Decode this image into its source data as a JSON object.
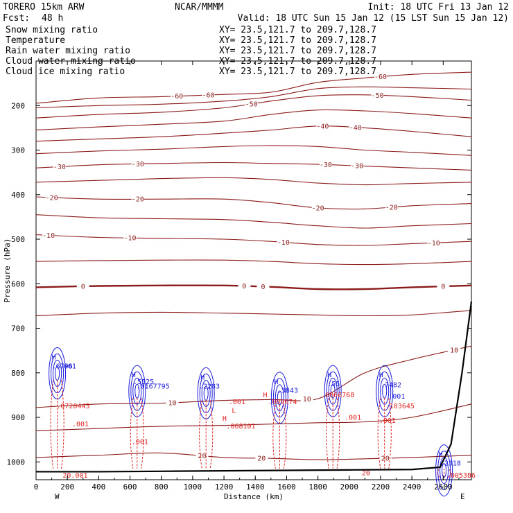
{
  "header": {
    "model": "TORERO  15km ARW",
    "center": "NCAR/MMMM",
    "init": "Init: 18 UTC Fri 13 Jan 12",
    "fcst_label": "Fcst:",
    "fcst_value": "48 h",
    "valid": "Valid: 18 UTC Sun 15 Jan 12 (15 LST Sun 15 Jan 12)"
  },
  "legend": [
    {
      "name": "Snow mixing ratio",
      "color": "#000000",
      "xy": "XY=  23.5,121.7 to 209.7,128.7"
    },
    {
      "name": "Temperature",
      "color": "#8b1a1a",
      "xy": "XY=  23.5,121.7 to 209.7,128.7"
    },
    {
      "name": "Rain water mixing ratio",
      "color": "#e02020",
      "xy": "XY=  23.5,121.7 to 209.7,128.7"
    },
    {
      "name": "Cloud water mixing ratio",
      "color": "#1a1adc",
      "xy": "XY=  23.5,121.7 to 209.7,128.7"
    },
    {
      "name": "Cloud ice mixing ratio",
      "color": "#000000",
      "xy": "XY=  23.5,121.7 to 209.7,128.7"
    }
  ],
  "colors": {
    "temperature": "#8b1a1a",
    "rain": "#e02020",
    "cloud_water": "#1a1adc",
    "terrain": "#000000"
  },
  "chart_data": {
    "type": "contour-cross-section",
    "xlabel": "Distance (km)",
    "ylabel": "Pressure (hPa)",
    "xlim": [
      0,
      2780
    ],
    "ylim": [
      1040,
      100
    ],
    "xticks": [
      0,
      200,
      400,
      600,
      800,
      1000,
      1200,
      1400,
      1600,
      1800,
      2000,
      2200,
      2400,
      2600
    ],
    "yticks": [
      200,
      300,
      400,
      500,
      600,
      700,
      800,
      900,
      1000
    ],
    "left_end_label": "W",
    "right_end_label": "E",
    "temperature_contours": [
      {
        "level": -60,
        "x": [
          0,
          400,
          800,
          1200,
          1500,
          1800,
          2100,
          2400,
          2780
        ],
        "p": [
          195,
          183,
          180,
          175,
          170,
          148,
          138,
          130,
          125
        ],
        "labels": [
          {
            "x": 900,
            "text": "-60"
          },
          {
            "x": 1100,
            "text": "-60"
          },
          {
            "x": 2200,
            "text": "-60"
          }
        ]
      },
      {
        "level": -55,
        "x": [
          0,
          400,
          800,
          1200,
          1500,
          1800,
          2100,
          2400,
          2780
        ],
        "p": [
          205,
          200,
          197,
          190,
          180,
          162,
          158,
          160,
          163
        ],
        "labels": []
      },
      {
        "level": -50,
        "x": [
          0,
          400,
          800,
          1200,
          1500,
          1800,
          2100,
          2400,
          2780
        ],
        "p": [
          228,
          220,
          215,
          205,
          190,
          178,
          176,
          180,
          188
        ],
        "labels": [
          {
            "x": 1375,
            "text": "-50"
          },
          {
            "x": 2180,
            "text": "-50"
          }
        ]
      },
      {
        "level": -45,
        "x": [
          0,
          400,
          800,
          1200,
          1500,
          1800,
          2100,
          2400,
          2780
        ],
        "p": [
          255,
          248,
          242,
          235,
          220,
          210,
          212,
          218,
          228
        ],
        "labels": []
      },
      {
        "level": -40,
        "x": [
          0,
          400,
          800,
          1200,
          1500,
          1800,
          2100,
          2400,
          2780
        ],
        "p": [
          280,
          275,
          270,
          262,
          255,
          246,
          250,
          258,
          270
        ],
        "labels": [
          {
            "x": 1830,
            "text": "-40"
          },
          {
            "x": 2040,
            "text": "-40"
          }
        ]
      },
      {
        "level": -35,
        "x": [
          0,
          400,
          800,
          1200,
          1500,
          1800,
          2100,
          2400,
          2780
        ],
        "p": [
          308,
          302,
          298,
          292,
          290,
          292,
          300,
          305,
          312
        ],
        "labels": []
      },
      {
        "level": -30,
        "x": [
          0,
          400,
          800,
          1200,
          1500,
          1800,
          2100,
          2400,
          2780
        ],
        "p": [
          340,
          333,
          330,
          328,
          330,
          332,
          336,
          340,
          345
        ],
        "labels": [
          {
            "x": 150,
            "text": "-30"
          },
          {
            "x": 650,
            "text": "-30"
          },
          {
            "x": 1850,
            "text": "-30"
          },
          {
            "x": 2050,
            "text": "-30"
          }
        ]
      },
      {
        "level": -25,
        "x": [
          0,
          400,
          800,
          1200,
          1500,
          1800,
          2100,
          2400,
          2780
        ],
        "p": [
          372,
          368,
          364,
          362,
          366,
          374,
          378,
          375,
          372
        ],
        "labels": []
      },
      {
        "level": -20,
        "x": [
          0,
          400,
          800,
          1200,
          1500,
          1800,
          2100,
          2400,
          2780
        ],
        "p": [
          405,
          410,
          410,
          410,
          418,
          430,
          432,
          425,
          420
        ],
        "labels": [
          {
            "x": 100,
            "text": "-20"
          },
          {
            "x": 650,
            "text": "-20"
          },
          {
            "x": 1800,
            "text": "-20"
          },
          {
            "x": 2270,
            "text": "-20"
          }
        ]
      },
      {
        "level": -15,
        "x": [
          0,
          400,
          800,
          1200,
          1500,
          1800,
          2100,
          2400,
          2780
        ],
        "p": [
          445,
          452,
          454,
          456,
          462,
          470,
          475,
          470,
          465
        ],
        "labels": []
      },
      {
        "level": -10,
        "x": [
          0,
          400,
          800,
          1200,
          1500,
          1800,
          2100,
          2400,
          2780
        ],
        "p": [
          490,
          496,
          498,
          500,
          505,
          512,
          514,
          510,
          505
        ],
        "labels": [
          {
            "x": 80,
            "text": "-10"
          },
          {
            "x": 600,
            "text": "-10"
          },
          {
            "x": 1580,
            "text": "-10"
          },
          {
            "x": 2540,
            "text": "-10"
          }
        ]
      },
      {
        "level": -5,
        "x": [
          0,
          400,
          800,
          1200,
          1500,
          1800,
          2100,
          2400,
          2780
        ],
        "p": [
          550,
          548,
          547,
          547,
          550,
          555,
          557,
          555,
          550
        ],
        "labels": []
      },
      {
        "level": 0,
        "x": [
          0,
          400,
          800,
          1200,
          1500,
          1800,
          2100,
          2400,
          2780
        ],
        "p": [
          608,
          605,
          604,
          604,
          607,
          612,
          612,
          608,
          604
        ],
        "labels": [
          {
            "x": 300,
            "text": "0"
          },
          {
            "x": 1330,
            "text": "0"
          },
          {
            "x": 1450,
            "text": "0"
          },
          {
            "x": 2600,
            "text": "0"
          }
        ]
      },
      {
        "level": 5,
        "x": [
          0,
          400,
          800,
          1200,
          1500,
          1800,
          2100,
          2400,
          2780
        ],
        "p": [
          672,
          666,
          664,
          666,
          668,
          670,
          672,
          670,
          660
        ],
        "labels": []
      },
      {
        "level": 10,
        "x": [
          0,
          400,
          800,
          1200,
          1500,
          1800,
          2100,
          2400,
          2780
        ],
        "p": [
          878,
          870,
          868,
          862,
          860,
          858,
          800,
          770,
          740
        ],
        "labels": [
          {
            "x": 870,
            "text": "10"
          },
          {
            "x": 1730,
            "text": "10"
          },
          {
            "x": 2670,
            "text": "10"
          }
        ]
      },
      {
        "level": 15,
        "x": [
          0,
          400,
          800,
          1200,
          1500,
          1800,
          2100,
          2400,
          2780
        ],
        "p": [
          930,
          925,
          920,
          918,
          915,
          912,
          910,
          900,
          870
        ],
        "labels": []
      },
      {
        "level": 20,
        "x": [
          0,
          400,
          800,
          1200,
          1500,
          1800,
          2100,
          2400,
          2780
        ],
        "p": [
          990,
          985,
          980,
          990,
          992,
          995,
          993,
          990,
          985
        ],
        "labels": [
          {
            "x": 1060,
            "text": "20"
          },
          {
            "x": 1440,
            "text": "20"
          },
          {
            "x": 2230,
            "text": "20"
          }
        ]
      }
    ],
    "terrain": {
      "x": [
        0,
        400,
        800,
        1200,
        1600,
        2000,
        2400,
        2580,
        2650,
        2720,
        2780
      ],
      "p": [
        1022,
        1022,
        1021,
        1020,
        1019,
        1018,
        1017,
        1012,
        960,
        800,
        640
      ]
    },
    "cloud_water_maxima": [
      {
        "x": 100,
        "p": 770,
        "label": "H"
      },
      {
        "x": 100,
        "p": 790,
        "label": ".6796"
      },
      {
        "x": 150,
        "p": 790,
        "label": ".001"
      },
      {
        "x": 610,
        "p": 810,
        "label": "H"
      },
      {
        "x": 620,
        "p": 825,
        "label": ".5525"
      },
      {
        "x": 640,
        "p": 835,
        "label": ".0167795"
      },
      {
        "x": 1050,
        "p": 815,
        "label": "H"
      },
      {
        "x": 1040,
        "p": 835,
        "label": ".2283"
      },
      {
        "x": 1520,
        "p": 825,
        "label": "H"
      },
      {
        "x": 1540,
        "p": 845,
        "label": ".3843"
      },
      {
        "x": 1860,
        "p": 810,
        "label": "H"
      },
      {
        "x": 1860,
        "p": 830,
        "label": ".55"
      },
      {
        "x": 2190,
        "p": 810,
        "label": "H"
      },
      {
        "x": 2200,
        "p": 832,
        "label": ".7482"
      },
      {
        "x": 2250,
        "p": 858,
        "label": ".001"
      },
      {
        "x": 2570,
        "p": 988,
        "label": "H"
      },
      {
        "x": 2580,
        "p": 1008,
        "label": ".2318"
      }
    ],
    "rain_maxima": [
      {
        "x": 130,
        "p": 880,
        "label": ".0720443"
      },
      {
        "x": 230,
        "p": 920,
        "label": ".001"
      },
      {
        "x": 610,
        "p": 960,
        "label": ".001"
      },
      {
        "x": 1190,
        "p": 908,
        "label": "H"
      },
      {
        "x": 1215,
        "p": 925,
        "label": ".068101"
      },
      {
        "x": 1230,
        "p": 870,
        "label": ".001"
      },
      {
        "x": 1250,
        "p": 890,
        "label": "L"
      },
      {
        "x": 1450,
        "p": 855,
        "label": "H"
      },
      {
        "x": 1480,
        "p": 870,
        "label": ".009674"
      },
      {
        "x": 1820,
        "p": 855,
        "label": ".0066768"
      },
      {
        "x": 1970,
        "p": 905,
        "label": ".001"
      },
      {
        "x": 2230,
        "p": 880,
        "label": ".103645"
      },
      {
        "x": 2190,
        "p": 912,
        "label": ".001"
      },
      {
        "x": 2620,
        "p": 1035,
        "label": ".005386"
      },
      {
        "x": 170,
        "p": 1035,
        "label": "20.001"
      },
      {
        "x": 2080,
        "p": 1030,
        "label": "20"
      }
    ]
  }
}
